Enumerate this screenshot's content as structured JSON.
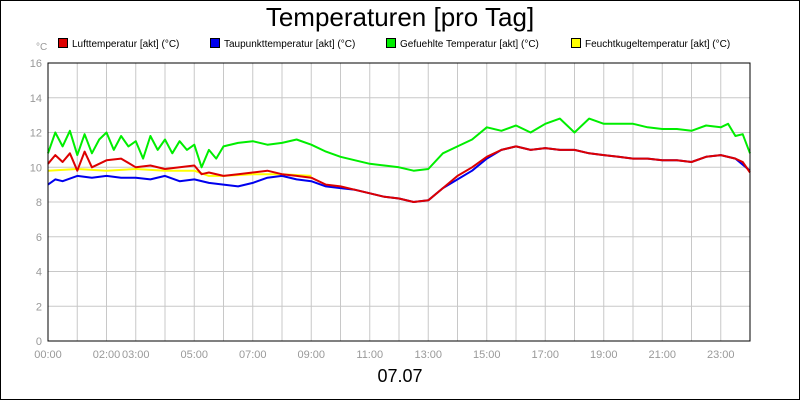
{
  "chart_data": {
    "type": "line",
    "title": "Temperaturen [pro Tag]",
    "xlabel": "07.07",
    "ylabel": "",
    "unit_label": "°C",
    "ylim": [
      0,
      16
    ],
    "yticks": [
      0,
      2,
      4,
      6,
      8,
      10,
      12,
      14,
      16
    ],
    "xlim": [
      0,
      24
    ],
    "xticks": [
      {
        "value": 0,
        "label": "00:00"
      },
      {
        "value": 2,
        "label": "02:00"
      },
      {
        "value": 3,
        "label": "03:00"
      },
      {
        "value": 5,
        "label": "05:00"
      },
      {
        "value": 7,
        "label": "07:00"
      },
      {
        "value": 9,
        "label": "09:00"
      },
      {
        "value": 11,
        "label": "11:00"
      },
      {
        "value": 13,
        "label": "13:00"
      },
      {
        "value": 15,
        "label": "15:00"
      },
      {
        "value": 17,
        "label": "17:00"
      },
      {
        "value": 19,
        "label": "19:00"
      },
      {
        "value": 21,
        "label": "21:00"
      },
      {
        "value": 23,
        "label": "23:00"
      }
    ],
    "grid": true,
    "legend_position": "top",
    "series": [
      {
        "name": "Gefuehlte Temperatur [akt] (°C)",
        "color": "#00ee00",
        "x": [
          0,
          0.25,
          0.5,
          0.75,
          1.0,
          1.25,
          1.5,
          1.75,
          2.0,
          2.25,
          2.5,
          2.75,
          3.0,
          3.25,
          3.5,
          3.75,
          4.0,
          4.25,
          4.5,
          4.75,
          5.0,
          5.25,
          5.5,
          5.75,
          6.0,
          6.5,
          7.0,
          7.5,
          8.0,
          8.5,
          9.0,
          9.5,
          10.0,
          10.5,
          11.0,
          11.5,
          12.0,
          12.5,
          13.0,
          13.5,
          14.0,
          14.5,
          15.0,
          15.5,
          16.0,
          16.5,
          17.0,
          17.5,
          18.0,
          18.5,
          19.0,
          19.5,
          20.0,
          20.5,
          21.0,
          21.5,
          22.0,
          22.5,
          23.0,
          23.25,
          23.5,
          23.75,
          24.0
        ],
        "y": [
          10.8,
          12.0,
          11.2,
          12.1,
          10.7,
          11.9,
          10.8,
          11.6,
          12.0,
          11.0,
          11.8,
          11.2,
          11.5,
          10.5,
          11.8,
          11.0,
          11.6,
          10.8,
          11.5,
          11.0,
          11.3,
          10.0,
          11.0,
          10.5,
          11.2,
          11.4,
          11.5,
          11.3,
          11.4,
          11.6,
          11.3,
          10.9,
          10.6,
          10.4,
          10.2,
          10.1,
          10.0,
          9.8,
          9.9,
          10.8,
          11.2,
          11.6,
          12.3,
          12.1,
          12.4,
          12.0,
          12.5,
          12.8,
          12.0,
          12.8,
          12.5,
          12.5,
          12.5,
          12.3,
          12.2,
          12.2,
          12.1,
          12.4,
          12.3,
          12.5,
          11.8,
          11.9,
          10.8
        ]
      },
      {
        "name": "Feuchtkugeltemperatur [akt] (°C)",
        "color": "#ffff00",
        "x": [
          0,
          1,
          2,
          3,
          4,
          5,
          5.5,
          6,
          7,
          8,
          9
        ],
        "y": [
          9.8,
          9.9,
          9.8,
          9.9,
          9.8,
          9.8,
          9.5,
          9.5,
          9.6,
          9.6,
          9.5
        ]
      },
      {
        "name": "Taupunkttemperatur [akt] (°C)",
        "color": "#0000ee",
        "x": [
          0,
          0.25,
          0.5,
          1.0,
          1.5,
          2.0,
          2.5,
          3.0,
          3.5,
          4.0,
          4.5,
          5.0,
          5.5,
          6.0,
          6.5,
          7.0,
          7.5,
          8.0,
          8.5,
          9.0,
          9.5,
          10.0,
          10.5,
          11.0,
          11.5,
          12.0,
          12.5,
          13.0,
          13.5,
          14.0,
          14.5,
          15.0,
          15.5,
          16.0,
          16.5,
          17.0,
          17.5,
          18.0,
          18.5,
          19.0,
          19.5,
          20.0,
          20.5,
          21.0,
          21.5,
          22.0,
          22.5,
          23.0,
          23.5,
          24.0
        ],
        "y": [
          9.0,
          9.3,
          9.2,
          9.5,
          9.4,
          9.5,
          9.4,
          9.4,
          9.3,
          9.5,
          9.2,
          9.3,
          9.1,
          9.0,
          8.9,
          9.1,
          9.4,
          9.5,
          9.3,
          9.2,
          8.9,
          8.8,
          8.7,
          8.5,
          8.3,
          8.2,
          8.0,
          8.1,
          8.8,
          9.3,
          9.8,
          10.5,
          11.0,
          11.2,
          11.0,
          11.1,
          11.0,
          11.0,
          10.8,
          10.7,
          10.6,
          10.5,
          10.5,
          10.4,
          10.4,
          10.3,
          10.6,
          10.7,
          10.5,
          9.8
        ]
      },
      {
        "name": "Lufttemperatur [akt] (°C)",
        "color": "#dd0000",
        "x": [
          0,
          0.25,
          0.5,
          0.75,
          1.0,
          1.25,
          1.5,
          2.0,
          2.5,
          3.0,
          3.5,
          4.0,
          4.5,
          5.0,
          5.25,
          5.5,
          6.0,
          6.5,
          7.0,
          7.5,
          8.0,
          8.5,
          9.0,
          9.5,
          10.0,
          10.5,
          11.0,
          11.5,
          12.0,
          12.5,
          13.0,
          13.5,
          14.0,
          14.5,
          15.0,
          15.5,
          16.0,
          16.5,
          17.0,
          17.5,
          18.0,
          18.5,
          19.0,
          19.5,
          20.0,
          20.5,
          21.0,
          21.5,
          22.0,
          22.5,
          23.0,
          23.5,
          23.75,
          24.0
        ],
        "y": [
          10.2,
          10.7,
          10.3,
          10.8,
          9.8,
          10.9,
          10.0,
          10.4,
          10.5,
          10.0,
          10.1,
          9.9,
          10.0,
          10.1,
          9.6,
          9.7,
          9.5,
          9.6,
          9.7,
          9.8,
          9.6,
          9.5,
          9.4,
          9.0,
          8.9,
          8.7,
          8.5,
          8.3,
          8.2,
          8.0,
          8.1,
          8.8,
          9.5,
          10.0,
          10.6,
          11.0,
          11.2,
          11.0,
          11.1,
          11.0,
          11.0,
          10.8,
          10.7,
          10.6,
          10.5,
          10.5,
          10.4,
          10.4,
          10.3,
          10.6,
          10.7,
          10.5,
          10.3,
          9.7
        ]
      }
    ]
  }
}
